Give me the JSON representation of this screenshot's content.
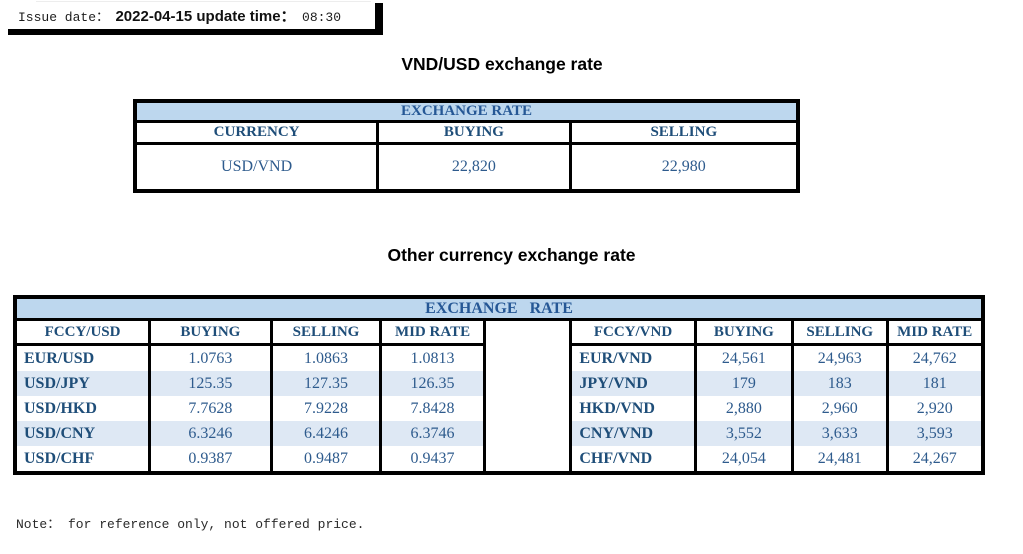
{
  "meta": {
    "issue_label": "Issue date：",
    "issue_date": "2022-04-15",
    "update_label": "update time：",
    "update_time": "08:30"
  },
  "usd_table": {
    "title": "VND/USD exchange rate",
    "band": "EXCHANGE RATE",
    "columns": [
      "CURRENCY",
      "BUYING",
      "SELLING"
    ],
    "rows": [
      [
        "USD/VND",
        "22,820",
        "22,980"
      ]
    ]
  },
  "other_table": {
    "title": "Other currency exchange rate",
    "band": "EXCHANGE RATE",
    "left": {
      "columns": [
        "FCCY/USD",
        "BUYING",
        "SELLING",
        "MID RATE"
      ],
      "rows": [
        [
          "EUR/USD",
          "1.0763",
          "1.0863",
          "1.0813"
        ],
        [
          "USD/JPY",
          "125.35",
          "127.35",
          "126.35"
        ],
        [
          "USD/HKD",
          "7.7628",
          "7.9228",
          "7.8428"
        ],
        [
          "USD/CNY",
          "6.3246",
          "6.4246",
          "6.3746"
        ],
        [
          "USD/CHF",
          "0.9387",
          "0.9487",
          "0.9437"
        ]
      ]
    },
    "right": {
      "columns": [
        "FCCY/VND",
        "BUYING",
        "SELLING",
        "MID RATE"
      ],
      "rows": [
        [
          "EUR/VND",
          "24,561",
          "24,963",
          "24,762"
        ],
        [
          "JPY/VND",
          "179",
          "183",
          "181"
        ],
        [
          "HKD/VND",
          "2,880",
          "2,960",
          "2,920"
        ],
        [
          "CNY/VND",
          "3,552",
          "3,633",
          "3,593"
        ],
        [
          "CHF/VND",
          "24,054",
          "24,481",
          "24,267"
        ]
      ]
    }
  },
  "note": "Note： for reference only, not offered price.",
  "colors": {
    "header_bg": "#BDD7EE",
    "stripe_bg": "#DEE8F4",
    "table_label": "#1F4E79",
    "table_value": "#2E5B8D",
    "band_text": "#255795",
    "border": "#000000"
  }
}
